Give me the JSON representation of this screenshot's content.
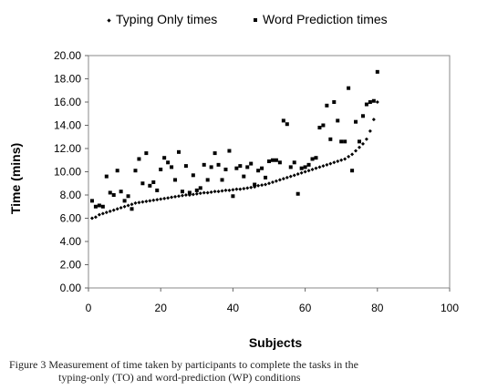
{
  "chart_data": {
    "type": "scatter",
    "title": "",
    "xlabel": "Subjects",
    "ylabel": "Time (mins)",
    "xlim": [
      0,
      100
    ],
    "ylim": [
      0,
      20
    ],
    "x_ticks": [
      "0",
      "20",
      "40",
      "60",
      "80",
      "100"
    ],
    "y_ticks": [
      "0.00",
      "2.00",
      "4.00",
      "6.00",
      "8.00",
      "10.00",
      "12.00",
      "14.00",
      "16.00",
      "18.00",
      "20.00"
    ],
    "grid": false,
    "legend": "top",
    "series": [
      {
        "name": "Typing Only times",
        "marker": "diamond",
        "x": [
          1,
          2,
          3,
          4,
          5,
          6,
          7,
          8,
          9,
          10,
          11,
          12,
          13,
          14,
          15,
          16,
          17,
          18,
          19,
          20,
          21,
          22,
          23,
          24,
          25,
          26,
          27,
          28,
          29,
          30,
          31,
          32,
          33,
          34,
          35,
          36,
          37,
          38,
          39,
          40,
          41,
          42,
          43,
          44,
          45,
          46,
          47,
          48,
          49,
          50,
          51,
          52,
          53,
          54,
          55,
          56,
          57,
          58,
          59,
          60,
          61,
          62,
          63,
          64,
          65,
          66,
          67,
          68,
          69,
          70,
          71,
          72,
          73,
          74,
          75,
          76,
          77,
          78,
          79,
          80
        ],
        "y": [
          6.0,
          6.1,
          6.3,
          6.4,
          6.5,
          6.6,
          6.7,
          6.8,
          6.9,
          7.0,
          7.1,
          7.2,
          7.3,
          7.35,
          7.4,
          7.45,
          7.5,
          7.55,
          7.6,
          7.65,
          7.7,
          7.75,
          7.8,
          7.85,
          7.9,
          7.95,
          8.0,
          8.0,
          8.05,
          8.1,
          8.15,
          8.2,
          8.2,
          8.25,
          8.3,
          8.3,
          8.35,
          8.4,
          8.4,
          8.45,
          8.5,
          8.5,
          8.55,
          8.6,
          8.65,
          8.7,
          8.8,
          8.85,
          8.9,
          9.0,
          9.1,
          9.2,
          9.3,
          9.4,
          9.5,
          9.6,
          9.7,
          9.8,
          9.9,
          10.0,
          10.1,
          10.2,
          10.3,
          10.4,
          10.5,
          10.6,
          10.7,
          10.8,
          10.9,
          11.0,
          11.1,
          11.3,
          11.5,
          11.8,
          12.1,
          12.4,
          12.8,
          13.5,
          14.5,
          16.0
        ]
      },
      {
        "name": "Word Prediction times",
        "marker": "square",
        "x": [
          1,
          2,
          3,
          4,
          5,
          6,
          7,
          8,
          9,
          10,
          11,
          12,
          13,
          14,
          15,
          16,
          17,
          18,
          19,
          20,
          21,
          22,
          23,
          24,
          25,
          26,
          27,
          28,
          29,
          30,
          31,
          32,
          33,
          34,
          35,
          36,
          37,
          38,
          39,
          40,
          41,
          42,
          43,
          44,
          45,
          46,
          47,
          48,
          49,
          50,
          51,
          52,
          53,
          54,
          55,
          56,
          57,
          58,
          59,
          60,
          61,
          62,
          63,
          64,
          65,
          66,
          67,
          68,
          69,
          70,
          71,
          72,
          73,
          74,
          75,
          76,
          77,
          78,
          79,
          80
        ],
        "y": [
          7.5,
          7.0,
          7.1,
          7.0,
          9.6,
          8.2,
          8.0,
          10.1,
          8.3,
          7.5,
          7.9,
          6.8,
          10.1,
          11.1,
          9.0,
          11.6,
          8.8,
          9.1,
          8.4,
          10.2,
          11.2,
          10.8,
          10.4,
          9.3,
          11.7,
          8.3,
          10.5,
          8.2,
          9.7,
          8.4,
          8.6,
          10.6,
          9.3,
          10.4,
          11.6,
          10.6,
          9.3,
          10.2,
          11.8,
          7.9,
          10.3,
          10.5,
          9.6,
          10.4,
          10.7,
          8.9,
          10.1,
          10.3,
          9.5,
          10.9,
          11.0,
          11.0,
          10.8,
          14.4,
          14.1,
          10.4,
          10.8,
          8.1,
          10.3,
          10.4,
          10.6,
          11.1,
          11.2,
          13.8,
          14.0,
          15.7,
          12.8,
          16.0,
          14.4,
          12.6,
          12.6,
          17.2,
          10.1,
          14.3,
          12.6,
          14.8,
          15.8,
          16.0,
          16.1,
          18.6
        ]
      }
    ]
  },
  "caption": {
    "line1": "Figure 3 Measurement of time taken by participants to complete the tasks in the",
    "line2": "typing-only (TO) and word-prediction (WP) conditions"
  }
}
